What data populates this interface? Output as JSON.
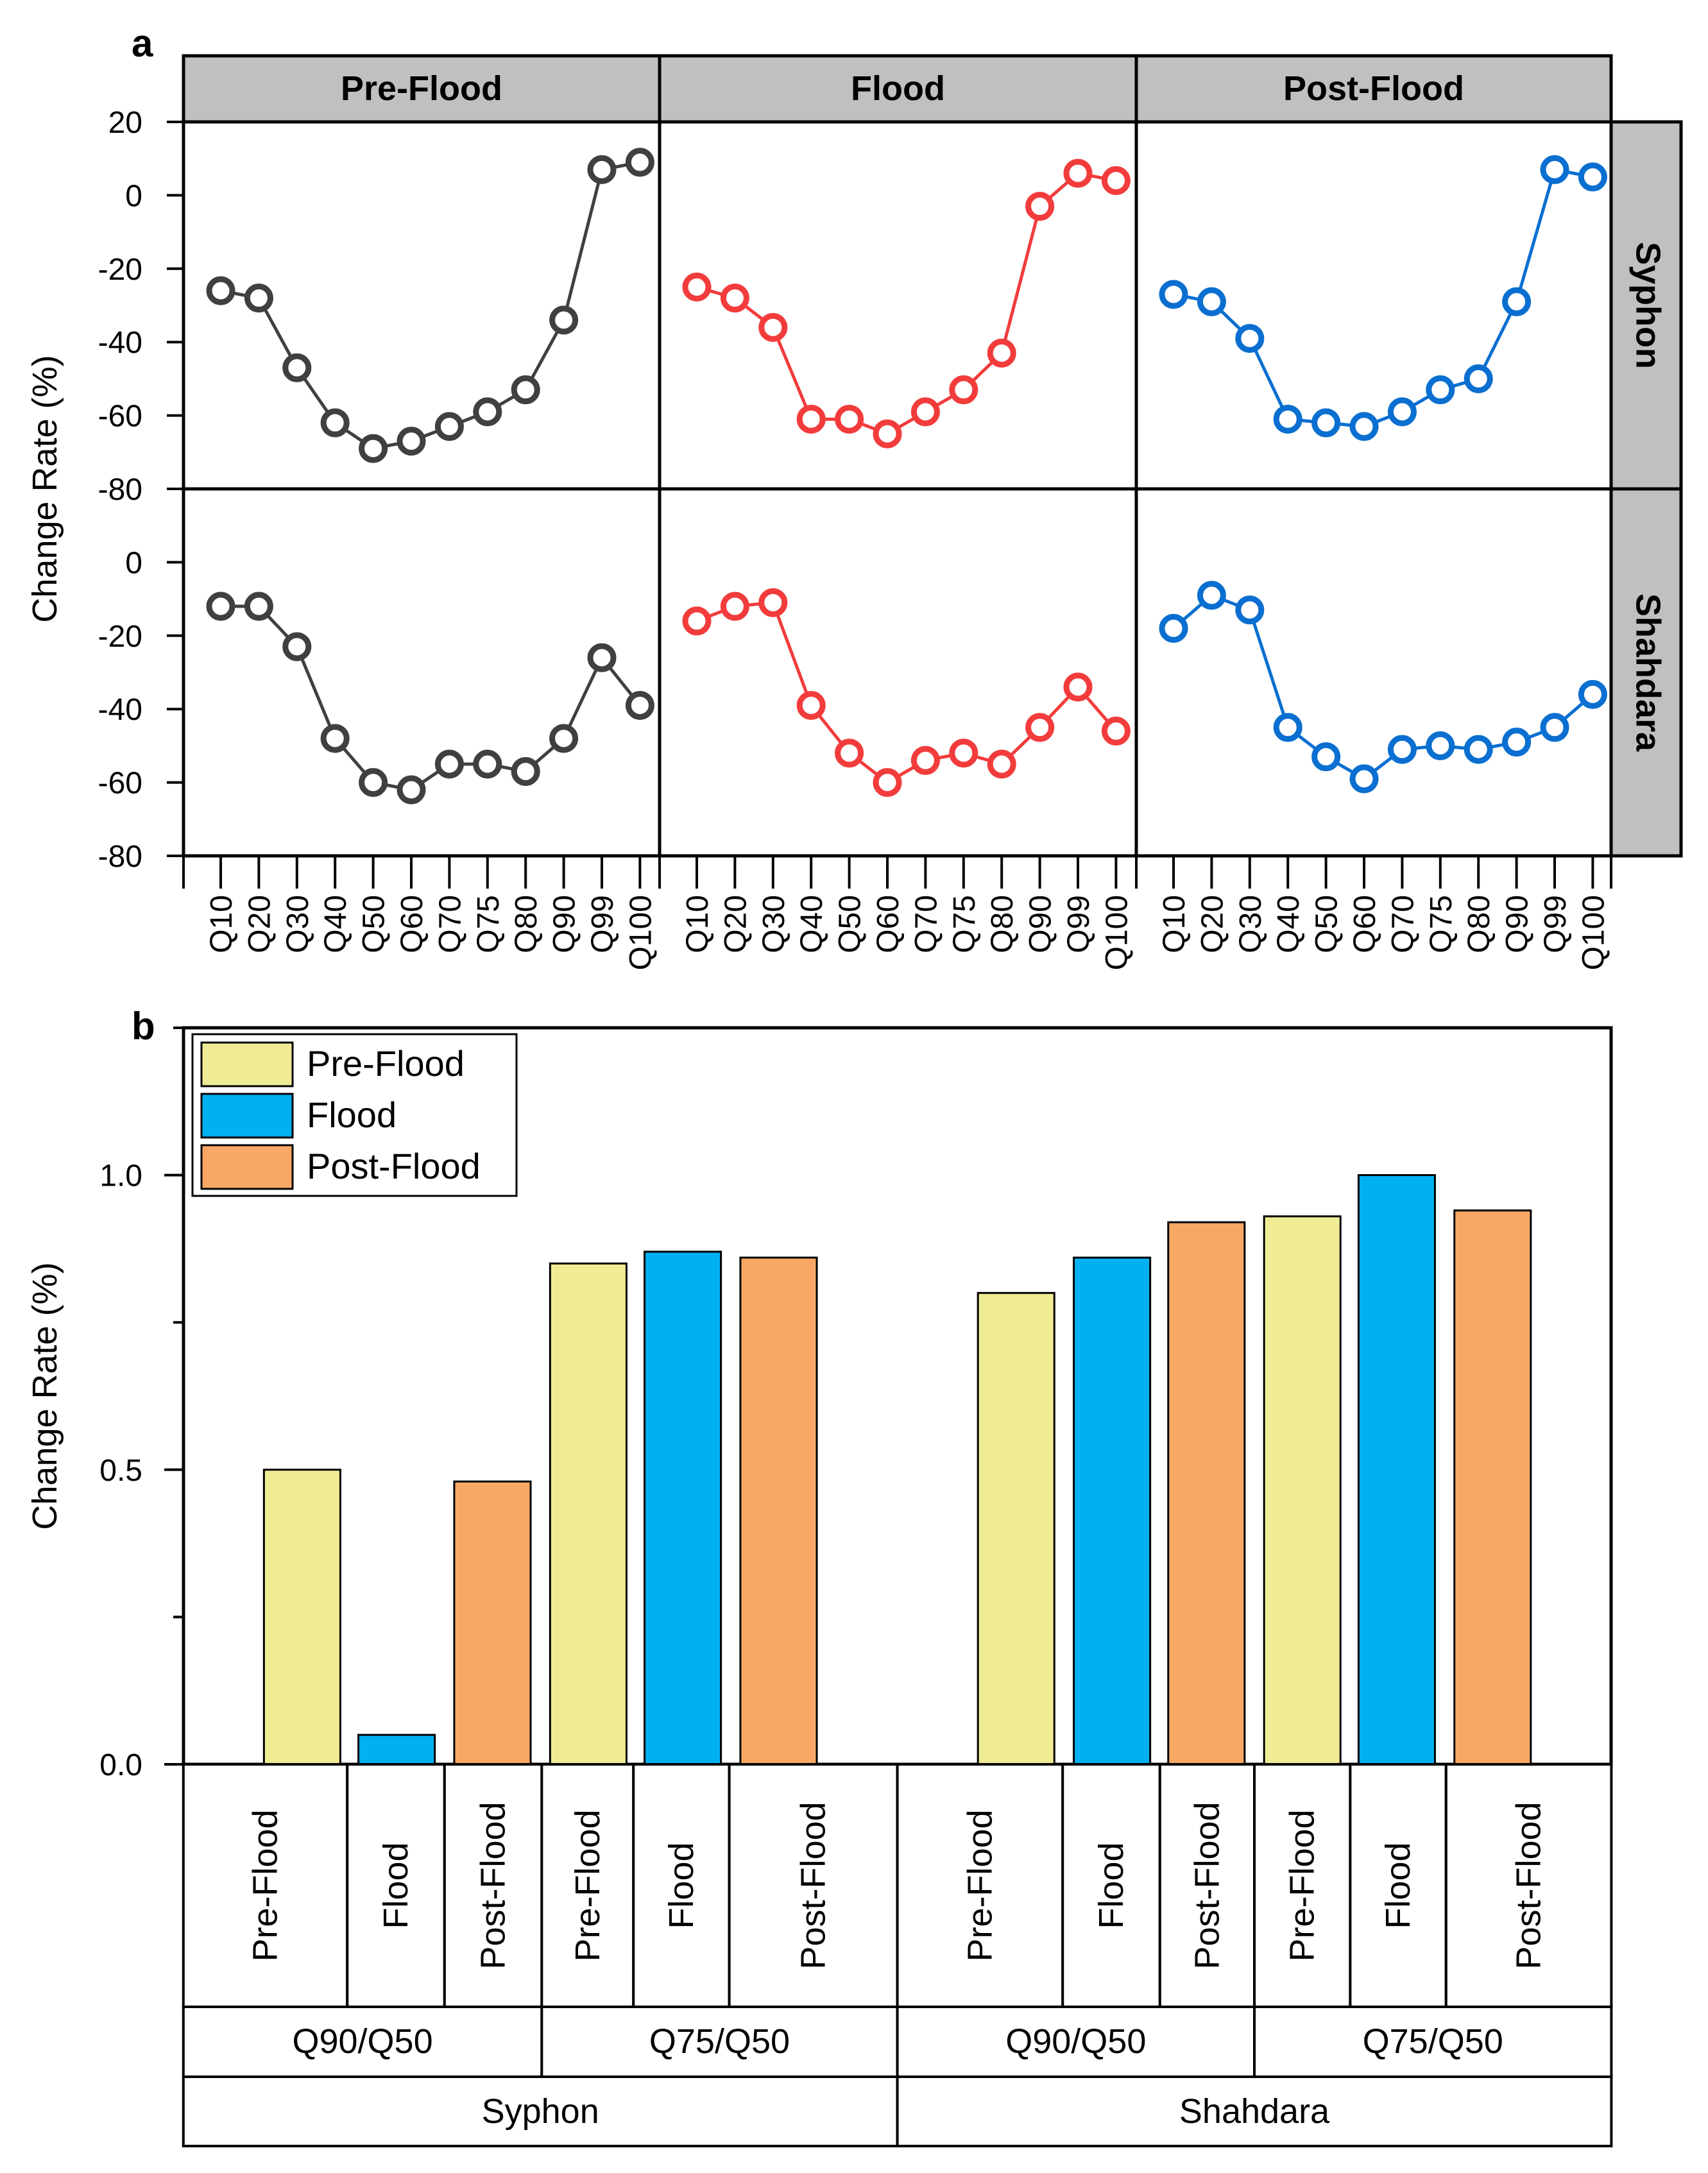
{
  "colors": {
    "pre": "#404040",
    "flood": "#f23c3c",
    "post": "#0a6fd0",
    "bar_pre": "#f0ec96",
    "bar_flood": "#00b0f0",
    "bar_post": "#f8a864",
    "strip": "#c0c0c0"
  },
  "chart_data": [
    {
      "type": "line",
      "panel_label": "a",
      "ylabel": "Change Rate (%)",
      "ylim": [
        -80,
        20
      ],
      "yticks": [
        "20",
        "0",
        "-20",
        "-40",
        "-60",
        "-80"
      ],
      "yticks_row2": [
        "0",
        "-20",
        "-40",
        "-60",
        "-80"
      ],
      "x": [
        "Q10",
        "Q20",
        "Q30",
        "Q40",
        "Q50",
        "Q60",
        "Q70",
        "Q75",
        "Q80",
        "Q90",
        "Q99",
        "Q100"
      ],
      "columns": [
        "Pre-Flood",
        "Flood",
        "Post-Flood"
      ],
      "rows": [
        "Syphon",
        "Shahdara"
      ],
      "series": {
        "Syphon": [
          {
            "name": "Pre-Flood",
            "values": [
              -26,
              -28,
              -47,
              -62,
              -69,
              -67,
              -63,
              -59,
              -53,
              -34,
              7,
              9
            ]
          },
          {
            "name": "Flood",
            "values": [
              -25,
              -28,
              -36,
              -61,
              -61,
              -65,
              -59,
              -53,
              -43,
              -3,
              6,
              4
            ]
          },
          {
            "name": "Post-Flood",
            "values": [
              -27,
              -29,
              -39,
              -61,
              -62,
              -63,
              -59,
              -53,
              -50,
              -29,
              7,
              5
            ]
          }
        ],
        "Shahdara": [
          {
            "name": "Pre-Flood",
            "values": [
              -12,
              -12,
              -23,
              -48,
              -60,
              -62,
              -55,
              -55,
              -57,
              -48,
              -26,
              -39
            ]
          },
          {
            "name": "Flood",
            "values": [
              -16,
              -12,
              -11,
              -39,
              -52,
              -60,
              -54,
              -52,
              -55,
              -45,
              -34,
              -46
            ]
          },
          {
            "name": "Post-Flood",
            "values": [
              -18,
              -9,
              -13,
              -45,
              -53,
              -59,
              -51,
              -50,
              -51,
              -49,
              -45,
              -36
            ]
          }
        ]
      }
    },
    {
      "type": "bar",
      "panel_label": "b",
      "ylabel": "Change Rate (%)",
      "ylim": [
        0,
        1.25
      ],
      "yticks": [
        "0.0",
        "0.5",
        "1.0"
      ],
      "legend": [
        "Pre-Flood",
        "Flood",
        "Post-Flood"
      ],
      "legend_position": "top-left",
      "categories": [
        "Pre-Flood",
        "Flood",
        "Post-Flood",
        "Pre-Flood",
        "Flood",
        "Post-Flood",
        "Pre-Flood",
        "Flood",
        "Post-Flood",
        "Pre-Flood",
        "Flood",
        "Post-Flood"
      ],
      "ratios": [
        "Q90/Q50",
        "Q75/Q50",
        "Q90/Q50",
        "Q75/Q50"
      ],
      "sites": [
        "Syphon",
        "Shahdara"
      ],
      "values": [
        0.5,
        0.05,
        0.48,
        0.85,
        0.87,
        0.86,
        0.8,
        0.86,
        0.92,
        0.93,
        1.0,
        0.94
      ]
    }
  ]
}
